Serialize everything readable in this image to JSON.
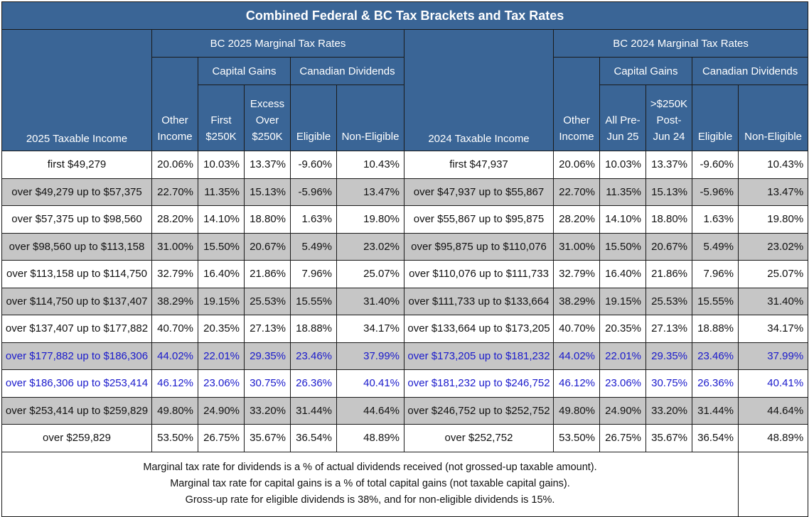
{
  "title": "Combined Federal & BC Tax Brackets and Tax Rates",
  "headers": {
    "group_2025": "BC 2025 Marginal Tax Rates",
    "group_2024": "BC 2024 Marginal Tax Rates",
    "capital_gains": "Capital Gains",
    "canadian_dividends": "Canadian Dividends",
    "income_2025": "2025 Taxable Income",
    "income_2024": "2024 Taxable Income",
    "other_income": [
      "Other",
      "Income"
    ],
    "first_250k": [
      "First",
      "$250K"
    ],
    "excess_over_250k": [
      "Excess",
      "Over",
      "$250K"
    ],
    "all_pre_jun25": [
      "All Pre-",
      "Jun 25"
    ],
    "over_250k_post_jun24": [
      ">$250K",
      "Post-",
      "Jun 24"
    ],
    "eligible": "Eligible",
    "non_eligible": "Non-Eligible"
  },
  "rows": [
    {
      "style": "white",
      "inc25": "first $49,279",
      "r25": [
        "20.06%",
        "10.03%",
        "13.37%",
        "-9.60%",
        "10.43%"
      ],
      "inc24": "first $47,937",
      "r24": [
        "20.06%",
        "10.03%",
        "13.37%",
        "-9.60%",
        "10.43%"
      ]
    },
    {
      "style": "grey",
      "inc25": "over $49,279 up to $57,375",
      "r25": [
        "22.70%",
        "11.35%",
        "15.13%",
        "-5.96%",
        "13.47%"
      ],
      "inc24": "over $47,937 up to $55,867",
      "r24": [
        "22.70%",
        "11.35%",
        "15.13%",
        "-5.96%",
        "13.47%"
      ]
    },
    {
      "style": "white",
      "inc25": "over $57,375 up to $98,560",
      "r25": [
        "28.20%",
        "14.10%",
        "18.80%",
        "1.63%",
        "19.80%"
      ],
      "inc24": "over $55,867 up to $95,875",
      "r24": [
        "28.20%",
        "14.10%",
        "18.80%",
        "1.63%",
        "19.80%"
      ]
    },
    {
      "style": "grey",
      "inc25": "over $98,560 up to $113,158",
      "r25": [
        "31.00%",
        "15.50%",
        "20.67%",
        "5.49%",
        "23.02%"
      ],
      "inc24": "over $95,875 up to $110,076",
      "r24": [
        "31.00%",
        "15.50%",
        "20.67%",
        "5.49%",
        "23.02%"
      ]
    },
    {
      "style": "white",
      "inc25": "over $113,158 up to $114,750",
      "r25": [
        "32.79%",
        "16.40%",
        "21.86%",
        "7.96%",
        "25.07%"
      ],
      "inc24": "over $110,076 up to $111,733",
      "r24": [
        "32.79%",
        "16.40%",
        "21.86%",
        "7.96%",
        "25.07%"
      ]
    },
    {
      "style": "grey",
      "inc25": "over $114,750 up to $137,407",
      "r25": [
        "38.29%",
        "19.15%",
        "25.53%",
        "15.55%",
        "31.40%"
      ],
      "inc24": "over $111,733 up to $133,664",
      "r24": [
        "38.29%",
        "19.15%",
        "25.53%",
        "15.55%",
        "31.40%"
      ]
    },
    {
      "style": "white",
      "inc25": "over $137,407 up to $177,882",
      "r25": [
        "40.70%",
        "20.35%",
        "27.13%",
        "18.88%",
        "34.17%"
      ],
      "inc24": "over $133,664 up to $173,205",
      "r24": [
        "40.70%",
        "20.35%",
        "27.13%",
        "18.88%",
        "34.17%"
      ]
    },
    {
      "style": "grey blue",
      "inc25": "over $177,882 up to $186,306",
      "r25": [
        "44.02%",
        "22.01%",
        "29.35%",
        "23.46%",
        "37.99%"
      ],
      "inc24": "over $173,205 up to $181,232",
      "r24": [
        "44.02%",
        "22.01%",
        "29.35%",
        "23.46%",
        "37.99%"
      ]
    },
    {
      "style": "white blue",
      "inc25": "over $186,306 up to $253,414",
      "r25": [
        "46.12%",
        "23.06%",
        "30.75%",
        "26.36%",
        "40.41%"
      ],
      "inc24": "over $181,232 up to $246,752",
      "r24": [
        "46.12%",
        "23.06%",
        "30.75%",
        "26.36%",
        "40.41%"
      ]
    },
    {
      "style": "grey",
      "inc25": "over $253,414 up to $259,829",
      "r25": [
        "49.80%",
        "24.90%",
        "33.20%",
        "31.44%",
        "44.64%"
      ],
      "inc24": "over $246,752 up to $252,752",
      "r24": [
        "49.80%",
        "24.90%",
        "33.20%",
        "31.44%",
        "44.64%"
      ]
    },
    {
      "style": "white",
      "inc25": "over $259,829",
      "r25": [
        "53.50%",
        "26.75%",
        "35.67%",
        "36.54%",
        "48.89%"
      ],
      "inc24": "over $252,752",
      "r24": [
        "53.50%",
        "26.75%",
        "35.67%",
        "36.54%",
        "48.89%"
      ]
    }
  ],
  "notes": [
    "Marginal tax rate for dividends is a % of actual dividends received (not grossed-up taxable amount).",
    "Marginal tax rate for capital gains is a % of total capital gains (not taxable capital gains).",
    "Gross-up rate for eligible dividends is 38%, and for non-eligible dividends is 15%."
  ],
  "colors": {
    "header_bg": "#3a6596",
    "header_text": "#ffffff",
    "grey_row": "#c6c6c6",
    "highlight_text": "#1a1acc"
  }
}
